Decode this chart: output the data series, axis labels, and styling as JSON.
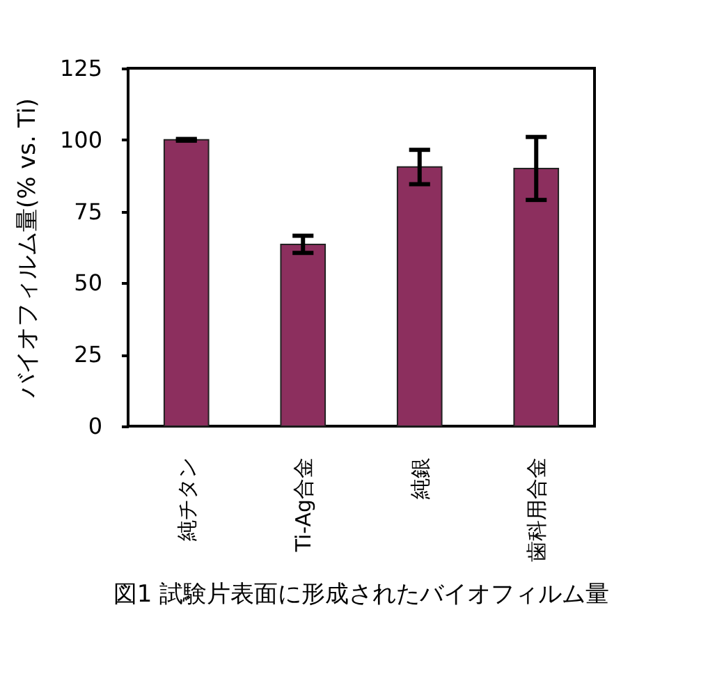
{
  "chart_data": {
    "type": "bar",
    "categories": [
      "純チタン",
      "Ti-Ag合金",
      "純銀",
      "歯科用合金"
    ],
    "values": [
      100,
      63.5,
      90.5,
      90
    ],
    "errors": [
      0.3,
      3,
      6,
      11
    ],
    "color": "#8c2f5e",
    "ylabel": "バイオフィルム量(% vs. Ti)",
    "ylim": [
      0,
      125
    ],
    "yticks": [
      0,
      25,
      50,
      75,
      100,
      125
    ],
    "grid": false,
    "annotations": [
      "図1 試験片表面に形成されたバイオフィルム量"
    ]
  }
}
